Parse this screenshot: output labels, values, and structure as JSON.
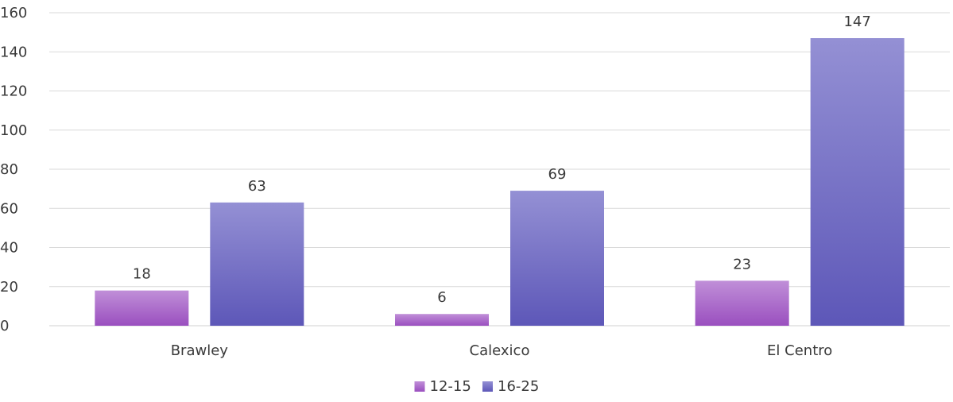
{
  "chart_data": {
    "type": "bar",
    "title": "",
    "xlabel": "",
    "ylabel": "",
    "categories": [
      "Brawley",
      "Calexico",
      "El Centro"
    ],
    "series": [
      {
        "name": "12-15",
        "values": [
          18,
          6,
          23
        ],
        "color_top": "#c08fd8",
        "color_bottom": "#9a4fbf"
      },
      {
        "name": "16-25",
        "values": [
          63,
          69,
          147
        ],
        "color_top": "#9490d4",
        "color_bottom": "#5d57b8"
      }
    ],
    "ylim": [
      0,
      160
    ],
    "yticks": [
      0,
      20,
      40,
      60,
      80,
      100,
      120,
      140,
      160
    ],
    "grid": true,
    "data_labels": true,
    "legend": "bottom-center"
  }
}
